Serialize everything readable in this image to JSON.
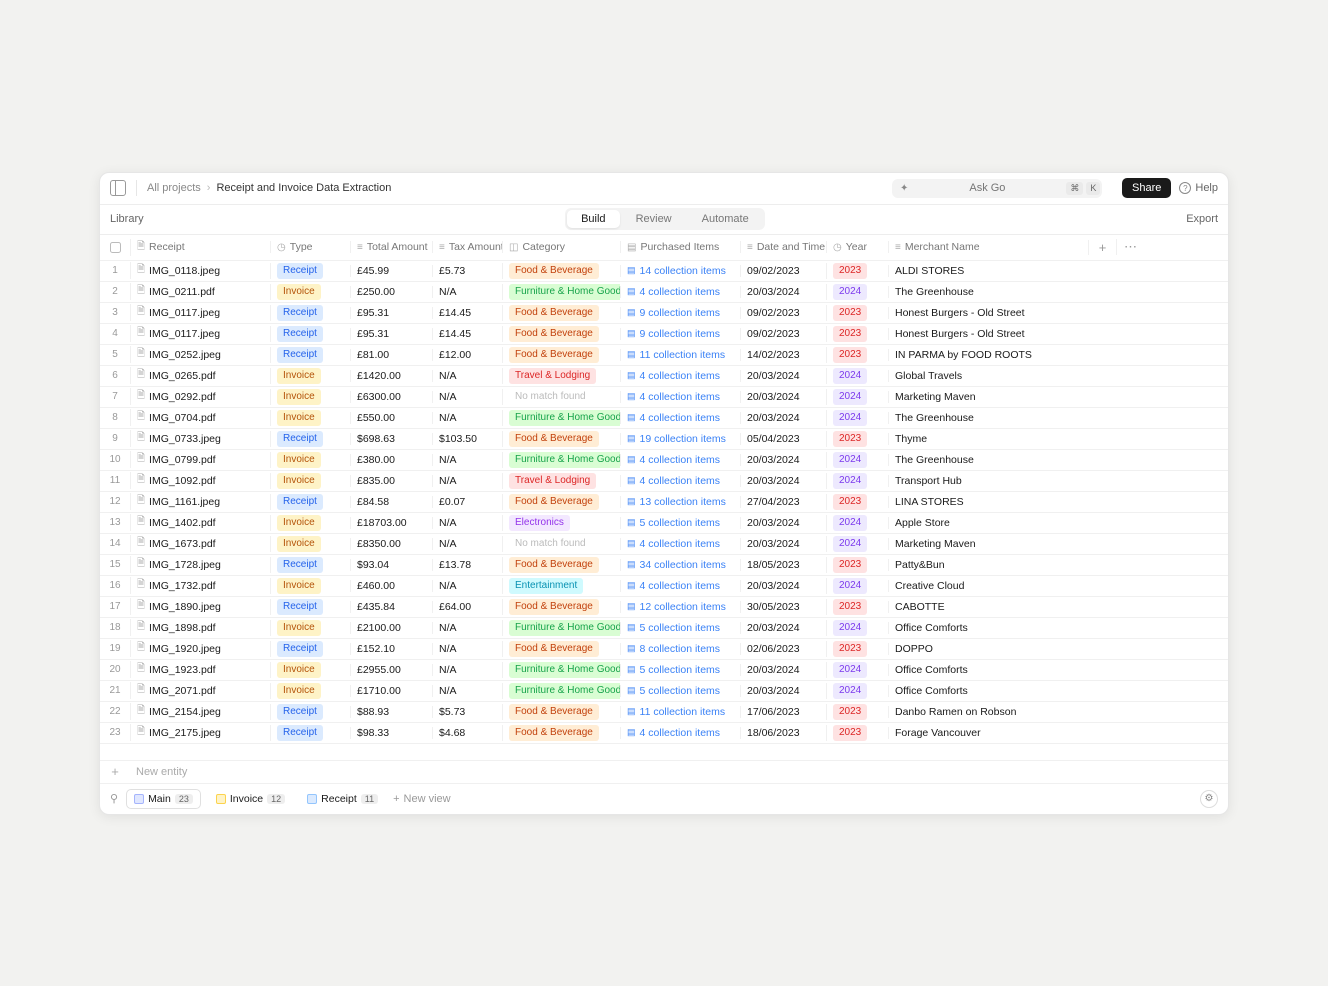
{
  "breadcrumb": {
    "parent": "All projects",
    "current": "Receipt and Invoice Data Extraction"
  },
  "search": {
    "placeholder": "Ask Go",
    "kbd1": "⌘",
    "kbd2": "K"
  },
  "topbar": {
    "share": "Share",
    "help": "Help"
  },
  "subbar": {
    "library": "Library",
    "export": "Export"
  },
  "tabs": {
    "build": "Build",
    "review": "Review",
    "automate": "Automate"
  },
  "columns": {
    "receipt": "Receipt",
    "type": "Type",
    "total": "Total Amount",
    "tax": "Tax Amount",
    "category": "Category",
    "purchased": "Purchased Items",
    "datetime": "Date and Time",
    "year": "Year",
    "merchant": "Merchant Name"
  },
  "category_styles": {
    "Food & Beverage": "badge-food",
    "Furniture & Home Goods": "badge-furniture",
    "Travel & Lodging": "badge-travel",
    "Electronics": "badge-electronics",
    "Entertainment": "badge-entertainment",
    "No match found": "badge-nomatch"
  },
  "type_styles": {
    "Receipt": "badge-receipt",
    "Invoice": "badge-invoice"
  },
  "year_styles": {
    "2023": "badge-2023",
    "2024": "badge-2024"
  },
  "rows": [
    {
      "n": "1",
      "file": "IMG_0118.jpeg",
      "type": "Receipt",
      "total": "£45.99",
      "tax": "£5.73",
      "cat": "Food & Beverage",
      "items": "14 collection items",
      "date": "09/02/2023",
      "year": "2023",
      "merchant": "ALDI STORES"
    },
    {
      "n": "2",
      "file": "IMG_0211.pdf",
      "type": "Invoice",
      "total": "£250.00",
      "tax": "N/A",
      "cat": "Furniture & Home Goods",
      "items": "4 collection items",
      "date": "20/03/2024",
      "year": "2024",
      "merchant": "The Greenhouse"
    },
    {
      "n": "3",
      "file": "IMG_0117.jpeg",
      "type": "Receipt",
      "total": "£95.31",
      "tax": "£14.45",
      "cat": "Food & Beverage",
      "items": "9 collection items",
      "date": "09/02/2023",
      "year": "2023",
      "merchant": "Honest Burgers - Old Street"
    },
    {
      "n": "4",
      "file": "IMG_0117.jpeg",
      "type": "Receipt",
      "total": "£95.31",
      "tax": "£14.45",
      "cat": "Food & Beverage",
      "items": "9 collection items",
      "date": "09/02/2023",
      "year": "2023",
      "merchant": "Honest Burgers - Old Street"
    },
    {
      "n": "5",
      "file": "IMG_0252.jpeg",
      "type": "Receipt",
      "total": "£81.00",
      "tax": "£12.00",
      "cat": "Food & Beverage",
      "items": "11 collection items",
      "date": "14/02/2023",
      "year": "2023",
      "merchant": "IN PARMA by FOOD ROOTS"
    },
    {
      "n": "6",
      "file": "IMG_0265.pdf",
      "type": "Invoice",
      "total": "£1420.00",
      "tax": "N/A",
      "cat": "Travel & Lodging",
      "items": "4 collection items",
      "date": "20/03/2024",
      "year": "2024",
      "merchant": "Global Travels"
    },
    {
      "n": "7",
      "file": "IMG_0292.pdf",
      "type": "Invoice",
      "total": "£6300.00",
      "tax": "N/A",
      "cat": "No match found",
      "items": "4 collection items",
      "date": "20/03/2024",
      "year": "2024",
      "merchant": "Marketing Maven"
    },
    {
      "n": "8",
      "file": "IMG_0704.pdf",
      "type": "Invoice",
      "total": "£550.00",
      "tax": "N/A",
      "cat": "Furniture & Home Goods",
      "items": "4 collection items",
      "date": "20/03/2024",
      "year": "2024",
      "merchant": "The Greenhouse"
    },
    {
      "n": "9",
      "file": "IMG_0733.jpeg",
      "type": "Receipt",
      "total": "$698.63",
      "tax": "$103.50",
      "cat": "Food & Beverage",
      "items": "19 collection items",
      "date": "05/04/2023",
      "year": "2023",
      "merchant": "Thyme"
    },
    {
      "n": "10",
      "file": "IMG_0799.pdf",
      "type": "Invoice",
      "total": "£380.00",
      "tax": "N/A",
      "cat": "Furniture & Home Goods",
      "items": "4 collection items",
      "date": "20/03/2024",
      "year": "2024",
      "merchant": "The Greenhouse"
    },
    {
      "n": "11",
      "file": "IMG_1092.pdf",
      "type": "Invoice",
      "total": "£835.00",
      "tax": "N/A",
      "cat": "Travel & Lodging",
      "items": "4 collection items",
      "date": "20/03/2024",
      "year": "2024",
      "merchant": "Transport Hub"
    },
    {
      "n": "12",
      "file": "IMG_1161.jpeg",
      "type": "Receipt",
      "total": "£84.58",
      "tax": "£0.07",
      "cat": "Food & Beverage",
      "items": "13 collection items",
      "date": "27/04/2023",
      "year": "2023",
      "merchant": "LINA STORES"
    },
    {
      "n": "13",
      "file": "IMG_1402.pdf",
      "type": "Invoice",
      "total": "£18703.00",
      "tax": "N/A",
      "cat": "Electronics",
      "items": "5 collection items",
      "date": "20/03/2024",
      "year": "2024",
      "merchant": "Apple Store"
    },
    {
      "n": "14",
      "file": "IMG_1673.pdf",
      "type": "Invoice",
      "total": "£8350.00",
      "tax": "N/A",
      "cat": "No match found",
      "items": "4 collection items",
      "date": "20/03/2024",
      "year": "2024",
      "merchant": "Marketing Maven"
    },
    {
      "n": "15",
      "file": "IMG_1728.jpeg",
      "type": "Receipt",
      "total": "$93.04",
      "tax": "£13.78",
      "cat": "Food & Beverage",
      "items": "34 collection items",
      "date": "18/05/2023",
      "year": "2023",
      "merchant": "Patty&Bun"
    },
    {
      "n": "16",
      "file": "IMG_1732.pdf",
      "type": "Invoice",
      "total": "£460.00",
      "tax": "N/A",
      "cat": "Entertainment",
      "items": "4 collection items",
      "date": "20/03/2024",
      "year": "2024",
      "merchant": "Creative Cloud"
    },
    {
      "n": "17",
      "file": "IMG_1890.jpeg",
      "type": "Receipt",
      "total": "£435.84",
      "tax": "£64.00",
      "cat": "Food & Beverage",
      "items": "12 collection items",
      "date": "30/05/2023",
      "year": "2023",
      "merchant": "CABOTTE"
    },
    {
      "n": "18",
      "file": "IMG_1898.pdf",
      "type": "Invoice",
      "total": "£2100.00",
      "tax": "N/A",
      "cat": "Furniture & Home Goods",
      "items": "5 collection items",
      "date": "20/03/2024",
      "year": "2024",
      "merchant": "Office Comforts"
    },
    {
      "n": "19",
      "file": "IMG_1920.jpeg",
      "type": "Receipt",
      "total": "£152.10",
      "tax": "N/A",
      "cat": "Food & Beverage",
      "items": "8 collection items",
      "date": "02/06/2023",
      "year": "2023",
      "merchant": "DOPPO"
    },
    {
      "n": "20",
      "file": "IMG_1923.pdf",
      "type": "Invoice",
      "total": "£2955.00",
      "tax": "N/A",
      "cat": "Furniture & Home Goods",
      "items": "5 collection items",
      "date": "20/03/2024",
      "year": "2024",
      "merchant": "Office Comforts"
    },
    {
      "n": "21",
      "file": "IMG_2071.pdf",
      "type": "Invoice",
      "total": "£1710.00",
      "tax": "N/A",
      "cat": "Furniture & Home Goods",
      "items": "5 collection items",
      "date": "20/03/2024",
      "year": "2024",
      "merchant": "Office Comforts"
    },
    {
      "n": "22",
      "file": "IMG_2154.jpeg",
      "type": "Receipt",
      "total": "$88.93",
      "tax": "$5.73",
      "cat": "Food & Beverage",
      "items": "11 collection items",
      "date": "17/06/2023",
      "year": "2023",
      "merchant": "Danbo Ramen on Robson"
    },
    {
      "n": "23",
      "file": "IMG_2175.jpeg",
      "type": "Receipt",
      "total": "$98.33",
      "tax": "$4.68",
      "cat": "Food & Beverage",
      "items": "4 collection items",
      "date": "18/06/2023",
      "year": "2023",
      "merchant": "Forage Vancouver"
    }
  ],
  "new_entity": "New entity",
  "views": {
    "main": {
      "label": "Main",
      "count": "23"
    },
    "invoice": {
      "label": "Invoice",
      "count": "12"
    },
    "receipt": {
      "label": "Receipt",
      "count": "11"
    },
    "new": "New view"
  }
}
